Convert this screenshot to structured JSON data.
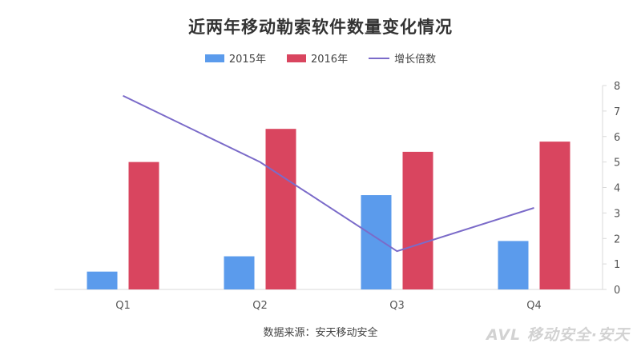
{
  "chart_data": {
    "type": "bar",
    "title": "近两年移动勒索软件数量变化情况",
    "categories": [
      "Q1",
      "Q2",
      "Q3",
      "Q4"
    ],
    "series": [
      {
        "name": "2015年",
        "kind": "bar",
        "axis": "left",
        "color": "#5b9bec",
        "values": [
          0.7,
          1.3,
          3.7,
          1.9
        ]
      },
      {
        "name": "2016年",
        "kind": "bar",
        "axis": "left",
        "color": "#d9455f",
        "values": [
          5.0,
          6.3,
          5.4,
          5.8
        ]
      },
      {
        "name": "增长倍数",
        "kind": "line",
        "axis": "right",
        "color": "#7b6bc9",
        "values": [
          7.6,
          5.0,
          1.5,
          3.2
        ]
      }
    ],
    "y_right": {
      "min": 0,
      "max": 8,
      "ticks": [
        0,
        1,
        2,
        3,
        4,
        5,
        6,
        7,
        8
      ]
    },
    "y_left_range": [
      0,
      8
    ],
    "legend_position": "top-center",
    "grid": false
  },
  "source_note": "数据来源：安天移动安全",
  "watermark": "AVL 移动安全·安天"
}
